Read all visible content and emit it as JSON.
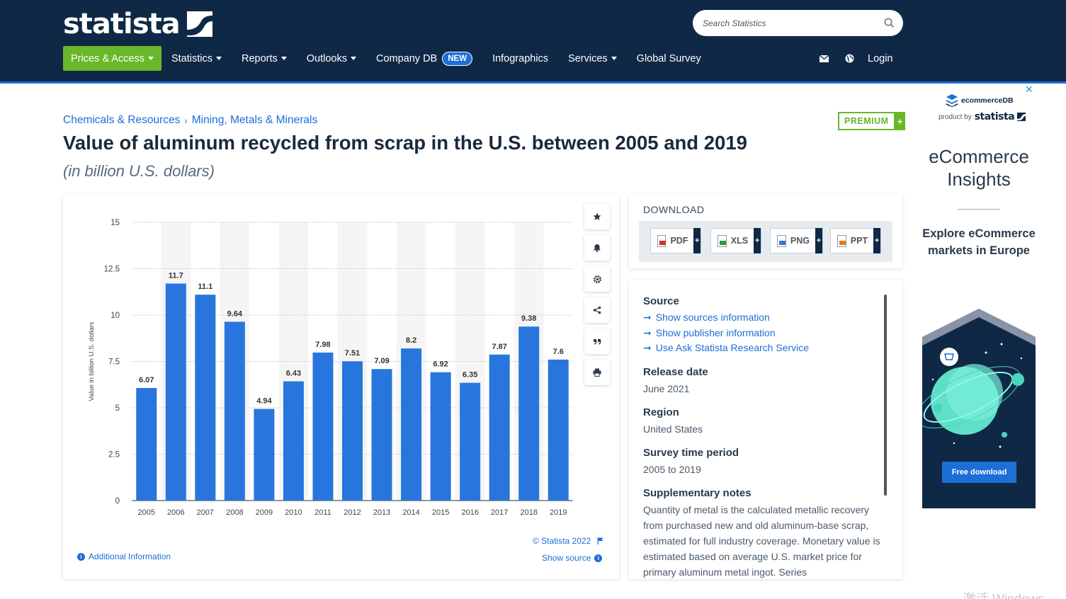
{
  "header": {
    "logo_text": "statista",
    "search_placeholder": "Search Statistics",
    "nav": [
      {
        "label": "Prices & Access",
        "dropdown": true
      },
      {
        "label": "Statistics",
        "dropdown": true
      },
      {
        "label": "Reports",
        "dropdown": true
      },
      {
        "label": "Outlooks",
        "dropdown": true
      },
      {
        "label": "Company DB",
        "dropdown": false,
        "badge": "NEW"
      },
      {
        "label": "Infographics",
        "dropdown": false
      },
      {
        "label": "Services",
        "dropdown": true
      },
      {
        "label": "Global Survey",
        "dropdown": false
      }
    ],
    "login_label": "Login",
    "colors": {
      "navy": "#0f2846",
      "green": "#68b829",
      "blue": "#1b6fd6"
    }
  },
  "breadcrumb": [
    "Chemicals & Resources",
    "Mining, Metals & Minerals"
  ],
  "premium_label": "PREMIUM",
  "page": {
    "title": "Value of aluminum recycled from scrap in the U.S. between 2005 and 2019",
    "subtitle": "(in billion U.S. dollars)"
  },
  "chart_data": {
    "type": "bar",
    "categories": [
      "2005",
      "2006",
      "2007",
      "2008",
      "2009",
      "2010",
      "2011",
      "2012",
      "2013",
      "2014",
      "2015",
      "2016",
      "2017",
      "2018",
      "2019"
    ],
    "values": [
      6.07,
      11.7,
      11.1,
      9.64,
      4.94,
      6.43,
      7.98,
      7.51,
      7.09,
      8.2,
      6.92,
      6.35,
      7.87,
      9.38,
      7.6
    ],
    "ylabel": "Value in billion U.S. dollars",
    "ylim": [
      0,
      15
    ],
    "yticks": [
      "0",
      "2.5",
      "5",
      "7.5",
      "10",
      "12.5",
      "15"
    ],
    "bar_color": "#2876dd",
    "grid": true
  },
  "chart_footer": {
    "credit": "© Statista 2022",
    "show_source": "Show source",
    "additional_info": "Additional Information"
  },
  "download": {
    "title": "DOWNLOAD",
    "buttons": [
      "PDF",
      "XLS",
      "PNG",
      "PPT"
    ]
  },
  "info": {
    "source_heading": "Source",
    "source_links": [
      "Show sources information",
      "Show publisher information",
      "Use Ask Statista Research Service"
    ],
    "release_heading": "Release date",
    "release_value": "June 2021",
    "region_heading": "Region",
    "region_value": "United States",
    "survey_heading": "Survey time period",
    "survey_value": "2005 to 2019",
    "notes_heading": "Supplementary notes",
    "notes_value": "Quantity of metal is the calculated metallic recovery from purchased new and old aluminum-base scrap, estimated for full industry coverage. Monetary value is estimated based on average U.S. market price for primary aluminum metal ingot. Series"
  },
  "ad": {
    "brand": "ecommerceDB",
    "product_by": "product by",
    "product_name": "statista",
    "title": "eCommerce Insights",
    "explore": "Explore eCommerce markets in Europe",
    "button": "Free download"
  },
  "watermark": "激活 Windows"
}
